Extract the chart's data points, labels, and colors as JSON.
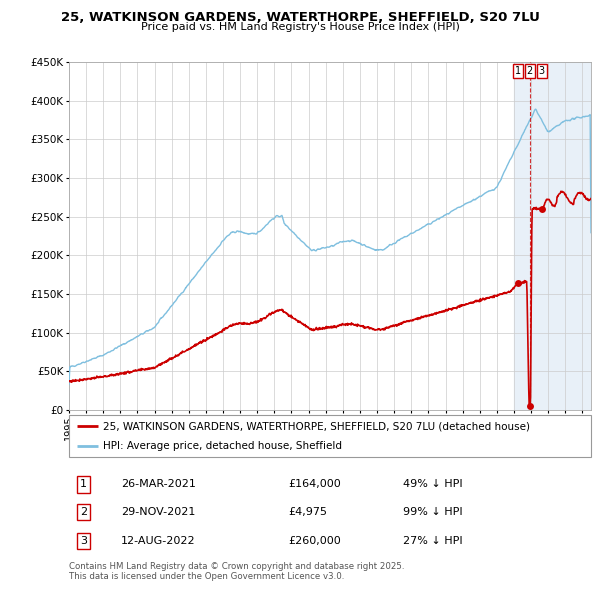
{
  "title": "25, WATKINSON GARDENS, WATERTHORPE, SHEFFIELD, S20 7LU",
  "subtitle": "Price paid vs. HM Land Registry's House Price Index (HPI)",
  "ylim": [
    0,
    450000
  ],
  "xlim_start": 1995.0,
  "xlim_end": 2025.5,
  "yticks": [
    0,
    50000,
    100000,
    150000,
    200000,
    250000,
    300000,
    350000,
    400000,
    450000
  ],
  "ytick_labels": [
    "£0",
    "£50K",
    "£100K",
    "£150K",
    "£200K",
    "£250K",
    "£300K",
    "£350K",
    "£400K",
    "£450K"
  ],
  "xticks": [
    1995,
    1996,
    1997,
    1998,
    1999,
    2000,
    2001,
    2002,
    2003,
    2004,
    2005,
    2006,
    2007,
    2008,
    2009,
    2010,
    2011,
    2012,
    2013,
    2014,
    2015,
    2016,
    2017,
    2018,
    2019,
    2020,
    2021,
    2022,
    2023,
    2024,
    2025
  ],
  "hpi_color": "#7fbfdf",
  "price_color": "#cc0000",
  "shade_color": "#e8f0f8",
  "shade_start": 2021.0,
  "shade_end": 2025.5,
  "transactions": [
    {
      "num": "1",
      "date": "26-MAR-2021",
      "year": 2021.23,
      "price": 164000,
      "label": "£164,000",
      "pct": "49% ↓ HPI"
    },
    {
      "num": "2",
      "date": "29-NOV-2021",
      "year": 2021.92,
      "price": 4975,
      "label": "£4,975",
      "pct": "99% ↓ HPI"
    },
    {
      "num": "3",
      "date": "12-AUG-2022",
      "year": 2022.62,
      "price": 260000,
      "label": "£260,000",
      "pct": "27% ↓ HPI"
    }
  ],
  "legend1_label": "25, WATKINSON GARDENS, WATERTHORPE, SHEFFIELD, S20 7LU (detached house)",
  "legend2_label": "HPI: Average price, detached house, Sheffield",
  "footnote": "Contains HM Land Registry data © Crown copyright and database right 2025.\nThis data is licensed under the Open Government Licence v3.0.",
  "background_color": "#ffffff",
  "grid_color": "#cccccc",
  "hpi_seed": 42,
  "price_seed": 99
}
